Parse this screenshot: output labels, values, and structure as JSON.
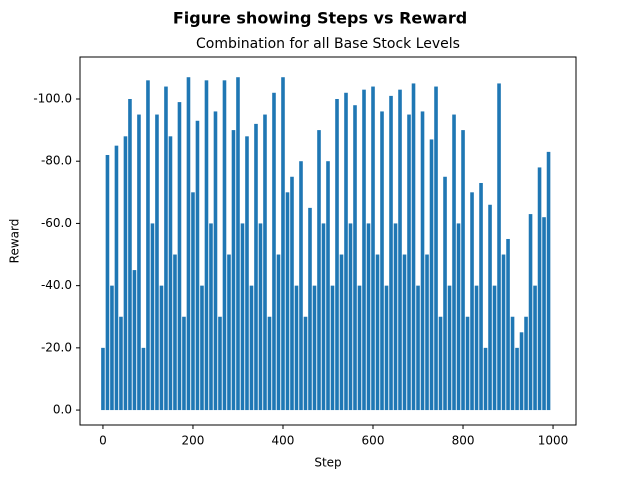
{
  "chart_data": {
    "type": "bar",
    "suptitle": "Figure showing Steps vs Reward",
    "title": "Combination for all Base Stock Levels",
    "xlabel": "Step",
    "ylabel": "Reward",
    "color": "#1f77b4",
    "x": [
      0,
      10,
      20,
      30,
      40,
      50,
      60,
      70,
      80,
      90,
      100,
      110,
      120,
      130,
      140,
      150,
      160,
      170,
      180,
      190,
      200,
      210,
      220,
      230,
      240,
      250,
      260,
      270,
      280,
      290,
      300,
      310,
      320,
      330,
      340,
      350,
      360,
      370,
      380,
      390,
      400,
      410,
      420,
      430,
      440,
      450,
      460,
      470,
      480,
      490,
      500,
      510,
      520,
      530,
      540,
      550,
      560,
      570,
      580,
      590,
      600,
      610,
      620,
      630,
      640,
      650,
      660,
      670,
      680,
      690,
      700,
      710,
      720,
      730,
      740,
      750,
      760,
      770,
      780,
      790,
      800,
      810,
      820,
      830,
      840,
      850,
      860,
      870,
      880,
      890,
      900,
      910,
      920,
      930,
      940,
      950,
      960,
      970,
      980,
      990
    ],
    "values": [
      -20,
      -82,
      -40,
      -85,
      -30,
      -88,
      -100,
      -45,
      -95,
      -20,
      -106,
      -60,
      -95,
      -40,
      -104,
      -88,
      -50,
      -99,
      -30,
      -107,
      -70,
      -93,
      -40,
      -106,
      -60,
      -96,
      -30,
      -106,
      -50,
      -90,
      -107,
      -60,
      -88,
      -40,
      -92,
      -60,
      -95,
      -30,
      -102,
      -50,
      -107,
      -70,
      -75,
      -40,
      -80,
      -30,
      -65,
      -40,
      -90,
      -60,
      -80,
      -40,
      -100,
      -50,
      -102,
      -60,
      -98,
      -40,
      -103,
      -60,
      -104,
      -50,
      -96,
      -40,
      -101,
      -60,
      -103,
      -50,
      -95,
      -105,
      -40,
      -96,
      -50,
      -87,
      -104,
      -30,
      -75,
      -40,
      -95,
      -60,
      -90,
      -30,
      -70,
      -40,
      -73,
      -20,
      -66,
      -40,
      -105,
      -50,
      -55,
      -30,
      -20,
      -25,
      -30,
      -63,
      -40,
      -78,
      -62,
      -83
    ],
    "xlim": [
      -51,
      1051
    ],
    "xticks": [
      0,
      200,
      400,
      600,
      800,
      1000
    ],
    "ylim": [
      4.8,
      -113.5
    ],
    "yticks": [
      {
        "value": 0,
        "label": "0.0"
      },
      {
        "value": -20,
        "label": "-20.0"
      },
      {
        "value": -40,
        "label": "-40.0"
      },
      {
        "value": -60,
        "label": "-60.0"
      },
      {
        "value": -80,
        "label": "-80.0"
      },
      {
        "value": -100,
        "label": "-100.0"
      }
    ]
  }
}
